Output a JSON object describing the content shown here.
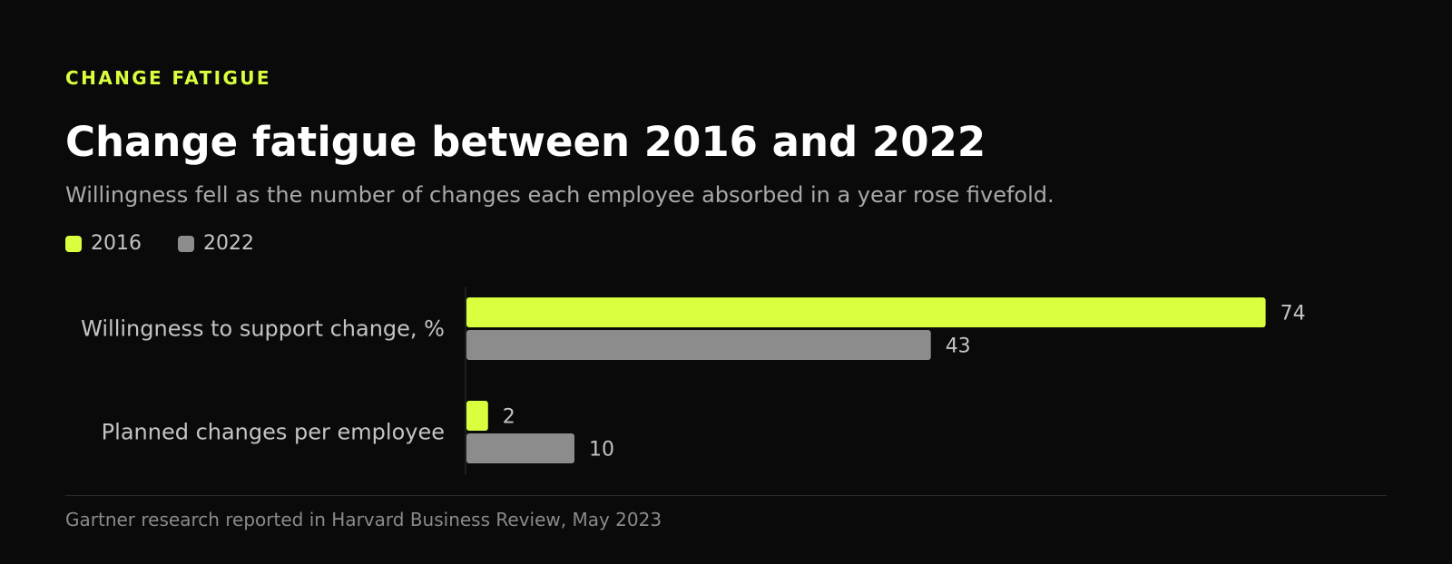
{
  "eyebrow": "CHANGE FATIGUE",
  "title": "Change fatigue between 2016 and 2022",
  "subtitle": "Willingness fell as the number of changes each employee absorbed in a year rose fivefold.",
  "source": "Gartner research reported in Harvard Business Review, May 2023",
  "colors": {
    "accent": "#d9ff3f",
    "secondary": "#8c8c8c",
    "background": "#0a0a0a"
  },
  "chart_data": {
    "type": "bar",
    "orientation": "horizontal",
    "categories": [
      "Willingness to support change, %",
      "Planned changes per employee"
    ],
    "series": [
      {
        "name": "2016",
        "values": [
          74,
          2
        ],
        "color": "#d9ff3f"
      },
      {
        "name": "2022",
        "values": [
          43,
          10
        ],
        "color": "#8c8c8c"
      }
    ],
    "xlim": [
      0,
      80
    ],
    "legend": "top-left",
    "grid": false
  }
}
